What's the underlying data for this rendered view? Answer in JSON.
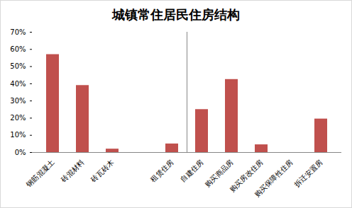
{
  "chart_data": {
    "type": "bar",
    "title": "城镇常住居民住房结构",
    "categories": [
      "钢筋混凝土",
      "砖混材料",
      "砖瓦砖木",
      null,
      "租赁住房",
      "自建住房",
      "购买商品房",
      "购买房改住房",
      "购买保障性住房",
      "拆迁安置房"
    ],
    "values": [
      57,
      39,
      2,
      null,
      5,
      25,
      42.5,
      4.5,
      0,
      19.5
    ],
    "color": "#c0504d",
    "ylim": [
      0,
      70
    ],
    "yticks": [
      {
        "value": 0,
        "label": "0%"
      },
      {
        "value": 10,
        "label": "10%"
      },
      {
        "value": 20,
        "label": "20%"
      },
      {
        "value": 30,
        "label": "30%"
      },
      {
        "value": 40,
        "label": "40%"
      },
      {
        "value": 50,
        "label": "50%"
      },
      {
        "value": 60,
        "label": "60%"
      },
      {
        "value": 70,
        "label": "70%"
      }
    ],
    "grid": false
  }
}
